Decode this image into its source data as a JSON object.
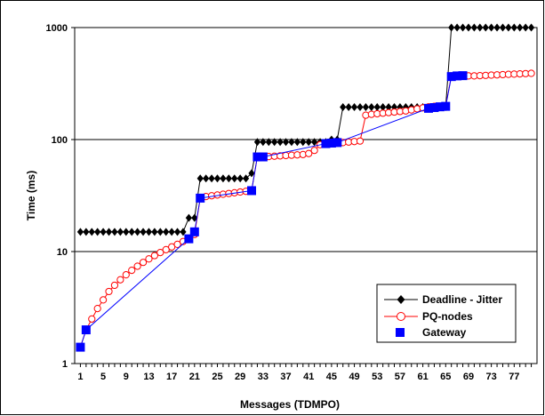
{
  "chart_data": {
    "type": "line",
    "xlabel": "Messages (TDMPO)",
    "ylabel": "Time (ms)",
    "y_scale": "log",
    "ylim": [
      1,
      1000
    ],
    "xlim": [
      0,
      81
    ],
    "x_tick_labels": [
      "1",
      "5",
      "9",
      "13",
      "17",
      "21",
      "25",
      "29",
      "33",
      "37",
      "41",
      "45",
      "49",
      "53",
      "57",
      "61",
      "65",
      "69",
      "73",
      "77"
    ],
    "y_tick_labels": [
      "1",
      "10",
      "100",
      "1000"
    ],
    "y_tick_values": [
      1,
      10,
      100,
      1000
    ],
    "grid": "horizontal",
    "legend_position": "bottom-right",
    "series": [
      {
        "name": "Deadline - Jitter",
        "color": "#000000",
        "marker": "diamond",
        "x": [
          1,
          2,
          3,
          4,
          5,
          6,
          7,
          8,
          9,
          10,
          11,
          12,
          13,
          14,
          15,
          16,
          17,
          18,
          19,
          20,
          21,
          22,
          23,
          24,
          25,
          26,
          27,
          28,
          29,
          30,
          31,
          32,
          33,
          34,
          35,
          36,
          37,
          38,
          39,
          40,
          41,
          42,
          43,
          44,
          45,
          46,
          47,
          48,
          49,
          50,
          51,
          52,
          53,
          54,
          55,
          56,
          57,
          58,
          59,
          60,
          61,
          62,
          63,
          64,
          65,
          66,
          67,
          68,
          69,
          70,
          71,
          72,
          73,
          74,
          75,
          76,
          77,
          78,
          79,
          80
        ],
        "y": [
          15,
          15,
          15,
          15,
          15,
          15,
          15,
          15,
          15,
          15,
          15,
          15,
          15,
          15,
          15,
          15,
          15,
          15,
          15,
          20,
          20,
          45,
          45,
          45,
          45,
          45,
          45,
          45,
          45,
          45,
          50,
          95,
          95,
          95,
          95,
          95,
          95,
          95,
          95,
          95,
          95,
          95,
          95,
          95,
          100,
          100,
          195,
          195,
          195,
          195,
          195,
          195,
          195,
          195,
          195,
          195,
          195,
          195,
          195,
          195,
          195,
          195,
          195,
          195,
          195,
          1000,
          1000,
          1000,
          1000,
          1000,
          1000,
          1000,
          1000,
          1000,
          1000,
          1000,
          1000,
          1000,
          1000,
          1000
        ]
      },
      {
        "name": "PQ-nodes",
        "color": "#ff0000",
        "marker": "circle-open",
        "x": [
          1,
          2,
          3,
          4,
          5,
          6,
          7,
          8,
          9,
          10,
          11,
          12,
          13,
          14,
          15,
          16,
          17,
          18,
          19,
          20,
          21,
          22,
          23,
          24,
          25,
          26,
          27,
          28,
          29,
          30,
          31,
          32,
          33,
          34,
          35,
          36,
          37,
          38,
          39,
          40,
          41,
          42,
          43,
          44,
          45,
          46,
          47,
          48,
          49,
          50,
          51,
          52,
          53,
          54,
          55,
          56,
          57,
          58,
          59,
          60,
          61,
          62,
          63,
          64,
          65,
          66,
          67,
          68,
          69,
          70,
          71,
          72,
          73,
          74,
          75,
          76,
          77,
          78,
          79,
          80
        ],
        "y": [
          1.4,
          2.0,
          2.5,
          3.1,
          3.7,
          4.4,
          5.0,
          5.6,
          6.2,
          6.8,
          7.4,
          8.0,
          8.6,
          9.2,
          9.8,
          10.4,
          11.0,
          11.6,
          12.3,
          13.0,
          14.2,
          30,
          31,
          31.5,
          32,
          32.5,
          33,
          33.5,
          34,
          34.5,
          35,
          70,
          70,
          70.5,
          71,
          71.5,
          72,
          72.5,
          73,
          73.5,
          75,
          80,
          90,
          91,
          92,
          93,
          94,
          95,
          96,
          97,
          165,
          168,
          170,
          172,
          174,
          176,
          178,
          180,
          184,
          188,
          192,
          196,
          198,
          198,
          200,
          370,
          370,
          370,
          370,
          370,
          372,
          374,
          376,
          378,
          380,
          382,
          384,
          386,
          388,
          390
        ]
      },
      {
        "name": "Gateway",
        "color": "#0000ff",
        "marker": "square",
        "x": [
          1,
          2,
          20,
          21,
          22,
          31,
          32,
          33,
          44,
          45,
          46,
          62,
          63,
          64,
          65,
          66,
          67,
          68
        ],
        "y": [
          1.4,
          2.0,
          13,
          15,
          30,
          35,
          70,
          70,
          92,
          93,
          94,
          190,
          193,
          196,
          198,
          365,
          370,
          372
        ]
      }
    ]
  }
}
